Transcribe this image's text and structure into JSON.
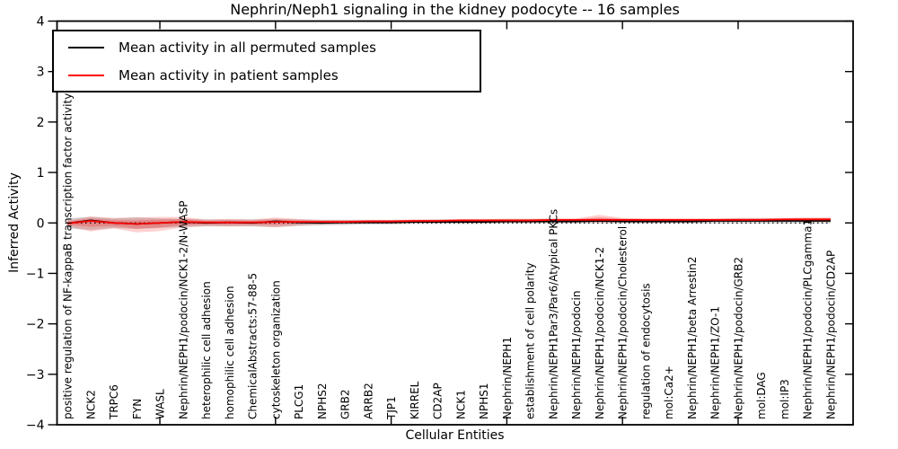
{
  "figure": {
    "title": "Nephrin/Neph1 signaling in the kidney podocyte -- 16 samples"
  },
  "chart_data": {
    "type": "line",
    "title": "Nephrin/Neph1 signaling in the kidney podocyte -- 16 samples",
    "xlabel": "Cellular Entities",
    "ylabel": "Inferred Activity",
    "ylim": [
      -4,
      4
    ],
    "yticks": [
      -4,
      -3,
      -2,
      -1,
      0,
      1,
      2,
      3,
      4
    ],
    "xtick_major_indices": [
      4,
      9,
      14,
      19,
      24,
      29
    ],
    "grid": false,
    "legend_position": "upper left",
    "categories": [
      "positive regulation of NF-kappaB transcription factor activity",
      "NCK2",
      "TRPC6",
      "FYN",
      "WASL",
      "Nephrin/NEPH1/podocin/NCK1-2/N-WASP",
      "heterophilic cell adhesion",
      "homophilic cell adhesion",
      "ChemicalAbstracts:57-88-5",
      "cytoskeleton organization",
      "PLCG1",
      "NPHS2",
      "GRB2",
      "ARRB2",
      "TJP1",
      "KIRREL",
      "CD2AP",
      "NCK1",
      "NPHS1",
      "Nephrin/NEPH1",
      "establishment of cell polarity",
      "Nephrin/NEPH1Par3/Par6/Atypical PKCs",
      "Nephrin/NEPH1/podocin",
      "Nephrin/NEPH1/podocin/NCK1-2",
      "Nephrin/NEPH1/podocin/Cholesterol",
      "regulation of endocytosis",
      "mol:Ca2+",
      "Nephrin/NEPH1/beta Arrestin2",
      "Nephrin/NEPH1/ZO-1",
      "Nephrin/NEPH1/podocin/GRB2",
      "mol:DAG",
      "mol:IP3",
      "Nephrin/NEPH1/podocin/PLCgamma1",
      "Nephrin/NEPH1/podocin/CD2AP"
    ],
    "series": [
      {
        "name": "Mean activity in all permuted samples",
        "color": "#000000",
        "values": [
          -0.01,
          0.05,
          0.0,
          -0.02,
          0.0,
          0.02,
          0.0,
          0.01,
          0.0,
          0.03,
          0.01,
          0.0,
          0.01,
          0.01,
          0.01,
          0.02,
          0.02,
          0.02,
          0.02,
          0.03,
          0.03,
          0.03,
          0.03,
          0.04,
          0.03,
          0.03,
          0.03,
          0.03,
          0.04,
          0.04,
          0.04,
          0.04,
          0.04,
          0.04
        ]
      },
      {
        "name": "Mean activity in patient samples",
        "color": "#ff0000",
        "values": [
          -0.01,
          0.04,
          0.0,
          -0.02,
          0.0,
          0.02,
          0.01,
          0.01,
          0.01,
          0.02,
          0.02,
          0.02,
          0.02,
          0.03,
          0.03,
          0.04,
          0.04,
          0.05,
          0.05,
          0.05,
          0.05,
          0.06,
          0.06,
          0.06,
          0.06,
          0.06,
          0.06,
          0.06,
          0.06,
          0.06,
          0.06,
          0.07,
          0.07,
          0.07
        ]
      }
    ],
    "bands": [
      {
        "name": "permuted-sample-range",
        "color": "rgba(110,110,110,0.30)",
        "upper": [
          0.09,
          0.12,
          0.09,
          0.11,
          0.09,
          0.08,
          0.07,
          0.07,
          0.07,
          0.08,
          0.07,
          0.06,
          0.06,
          0.06,
          0.06,
          0.06,
          0.07,
          0.07,
          0.07,
          0.08,
          0.08,
          0.08,
          0.08,
          0.09,
          0.08,
          0.08,
          0.08,
          0.08,
          0.08,
          0.09,
          0.09,
          0.09,
          0.09,
          0.09
        ],
        "lower": [
          -0.11,
          -0.14,
          -0.1,
          -0.12,
          -0.1,
          -0.08,
          -0.07,
          -0.07,
          -0.07,
          -0.08,
          -0.06,
          -0.05,
          -0.04,
          -0.03,
          -0.03,
          -0.02,
          -0.02,
          -0.02,
          -0.02,
          -0.01,
          -0.01,
          -0.01,
          -0.01,
          -0.01,
          -0.01,
          -0.01,
          -0.01,
          -0.01,
          -0.01,
          -0.01,
          -0.01,
          -0.01,
          -0.01,
          -0.01
        ]
      },
      {
        "name": "patient-sample-range",
        "color": "rgba(255,0,0,0.18)",
        "upper": [
          0.05,
          0.13,
          0.1,
          0.11,
          0.12,
          0.12,
          0.07,
          0.08,
          0.07,
          0.11,
          0.08,
          0.06,
          0.06,
          0.06,
          0.06,
          0.07,
          0.07,
          0.08,
          0.08,
          0.08,
          0.08,
          0.09,
          0.09,
          0.16,
          0.1,
          0.09,
          0.09,
          0.09,
          0.09,
          0.1,
          0.1,
          0.1,
          0.11,
          0.11
        ],
        "lower": [
          -0.06,
          -0.17,
          -0.11,
          -0.19,
          -0.16,
          -0.09,
          -0.06,
          -0.07,
          -0.06,
          -0.09,
          -0.05,
          -0.03,
          -0.02,
          -0.01,
          -0.01,
          0.0,
          0.0,
          0.01,
          0.01,
          0.01,
          0.01,
          0.02,
          0.02,
          0.01,
          0.02,
          0.02,
          0.02,
          0.02,
          0.02,
          0.03,
          0.03,
          0.03,
          0.03,
          0.03
        ]
      }
    ],
    "zero_line": {
      "style": "dotted",
      "color": "#000000",
      "y": 0
    }
  }
}
